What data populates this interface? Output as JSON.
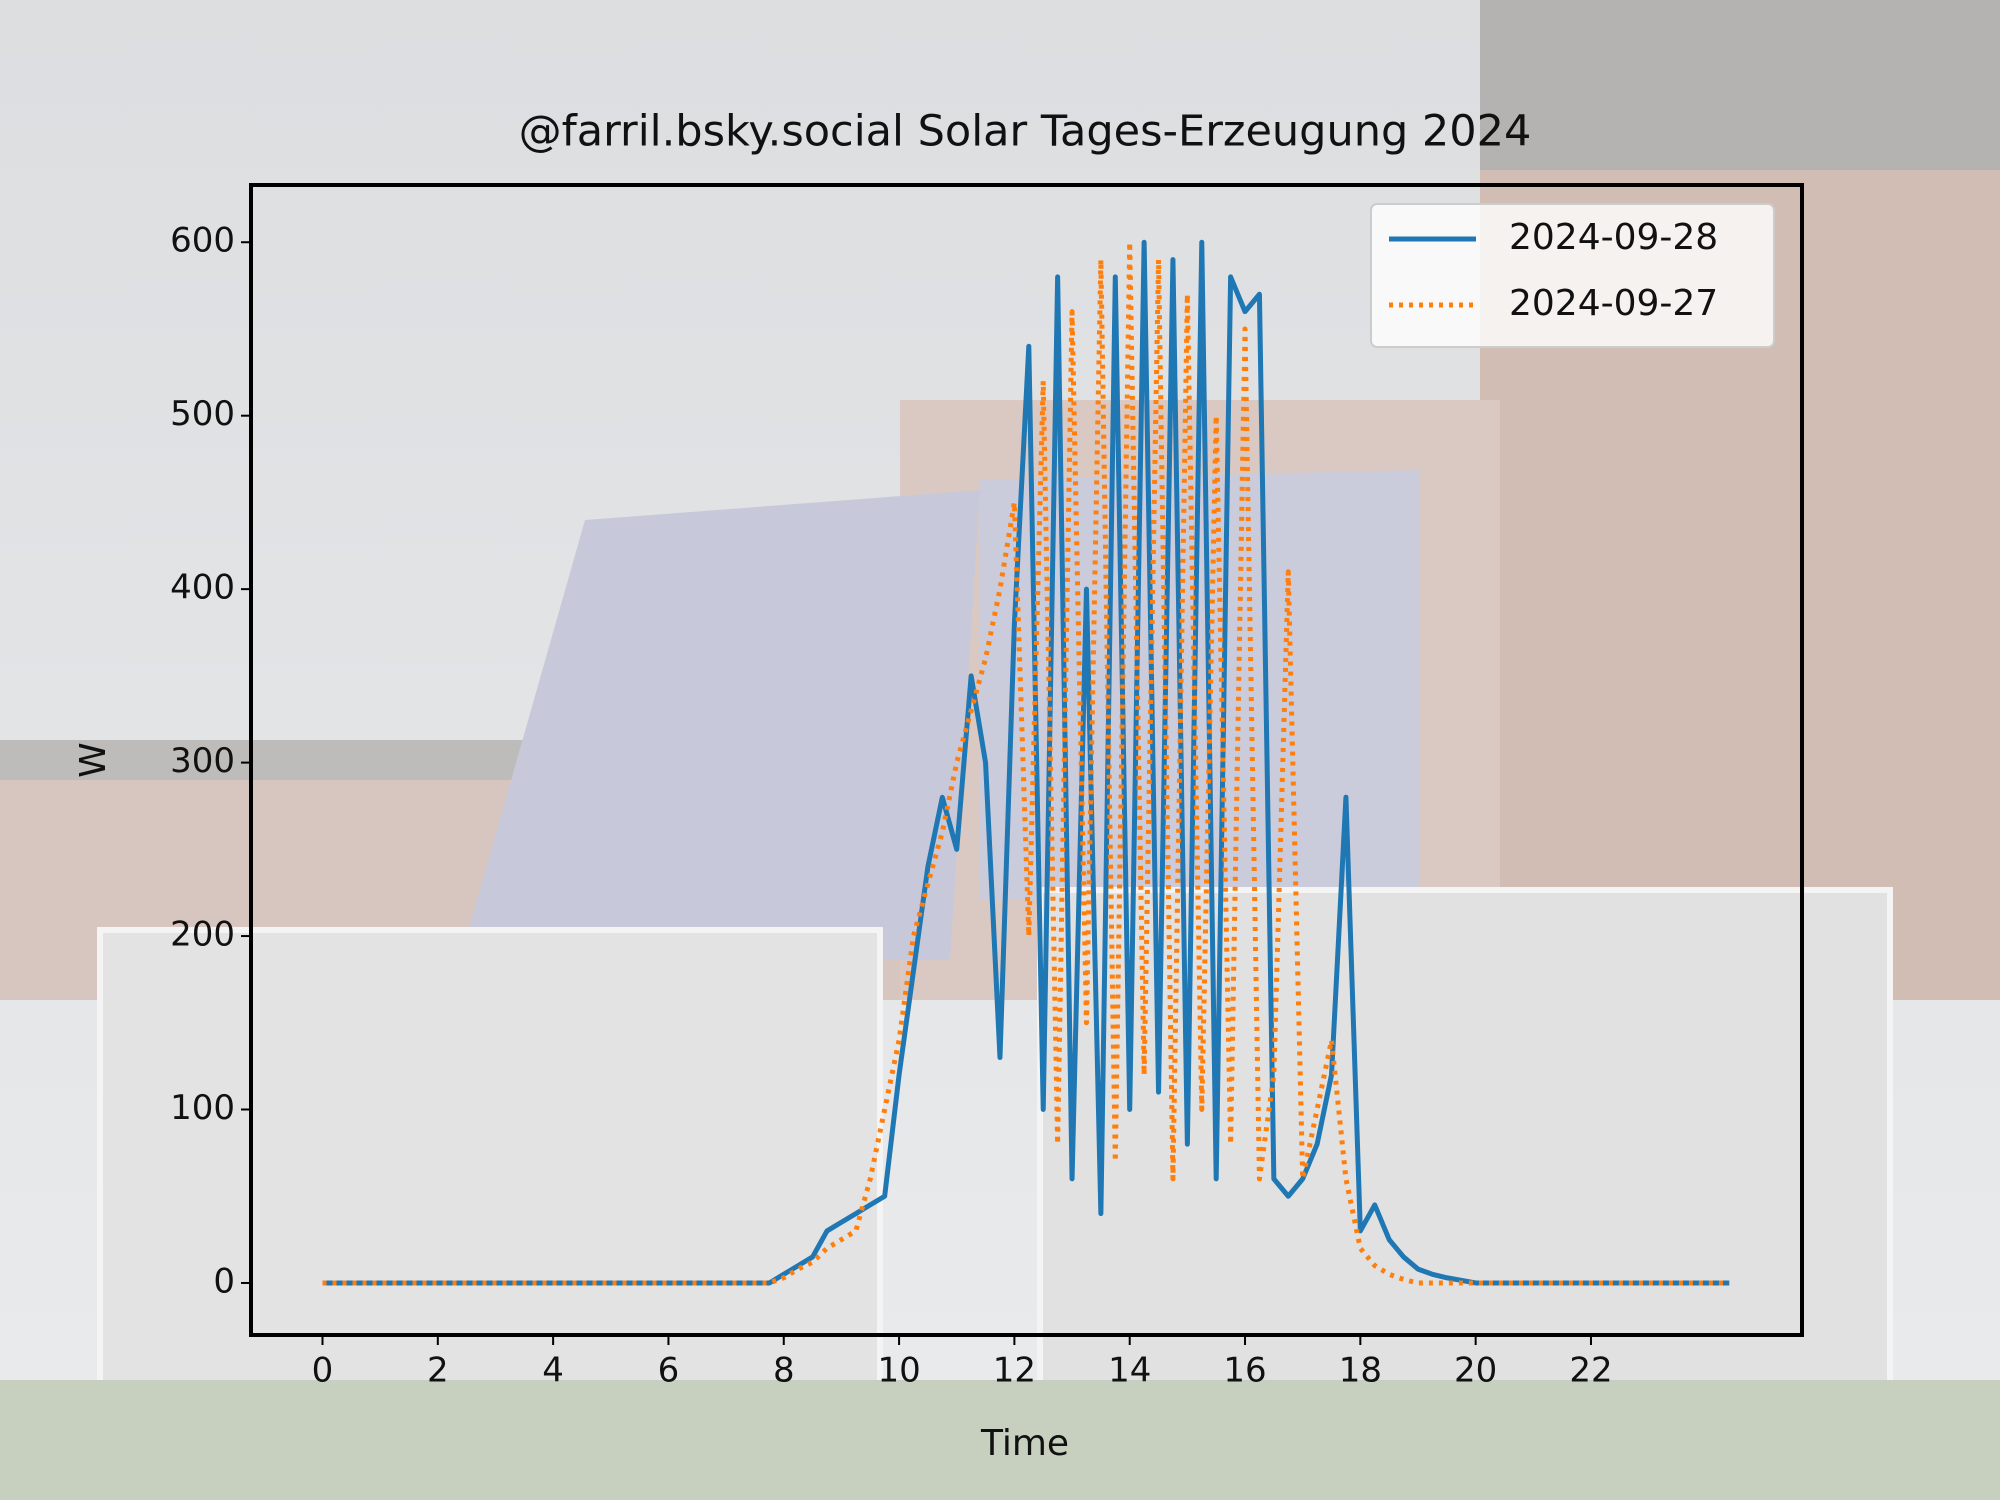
{
  "chart_data": {
    "type": "line",
    "title": "@farril.bsky.social Solar Tages-Erzeugung 2024",
    "xlabel": "Time",
    "ylabel": "W",
    "x": [
      0,
      7.75,
      8,
      8.25,
      8.5,
      8.75,
      9,
      9.25,
      9.5,
      9.75,
      10,
      10.25,
      10.5,
      10.75,
      11,
      11.25,
      11.5,
      11.75,
      12,
      12.25,
      12.5,
      12.75,
      13,
      13.25,
      13.5,
      13.75,
      14,
      14.25,
      14.5,
      14.75,
      15,
      15.25,
      15.5,
      15.75,
      16,
      16.25,
      16.5,
      16.75,
      17,
      17.25,
      17.5,
      17.75,
      18,
      18.25,
      18.5,
      18.75,
      19,
      19.25,
      19.5,
      20,
      24.4
    ],
    "series": [
      {
        "name": "2024-09-28",
        "color": "#1f77b4",
        "dash": "solid",
        "values": [
          0,
          0,
          5,
          10,
          15,
          30,
          35,
          40,
          45,
          50,
          120,
          180,
          240,
          280,
          250,
          350,
          300,
          130,
          380,
          540,
          100,
          580,
          60,
          400,
          40,
          580,
          100,
          600,
          110,
          590,
          80,
          600,
          60,
          580,
          560,
          570,
          60,
          50,
          60,
          80,
          120,
          280,
          30,
          45,
          25,
          15,
          8,
          5,
          3,
          0,
          0
        ]
      },
      {
        "name": "2024-09-27",
        "color": "#ff7f0e",
        "dash": "dotted",
        "values": [
          0,
          0,
          3,
          8,
          12,
          20,
          25,
          30,
          60,
          100,
          140,
          200,
          230,
          260,
          300,
          330,
          360,
          400,
          450,
          200,
          520,
          80,
          560,
          150,
          590,
          70,
          600,
          120,
          590,
          60,
          570,
          100,
          500,
          80,
          550,
          60,
          120,
          410,
          60,
          100,
          140,
          60,
          20,
          10,
          5,
          2,
          0,
          0,
          0,
          0,
          0
        ]
      }
    ],
    "xlim": [
      -1.24,
      25.66
    ],
    "ylim": [
      -30,
      633
    ],
    "xticks": [
      0,
      2,
      4,
      6,
      8,
      10,
      12,
      14,
      16,
      18,
      20,
      22
    ],
    "yticks": [
      0,
      100,
      200,
      300,
      400,
      500,
      600
    ],
    "legend": "upper right"
  }
}
